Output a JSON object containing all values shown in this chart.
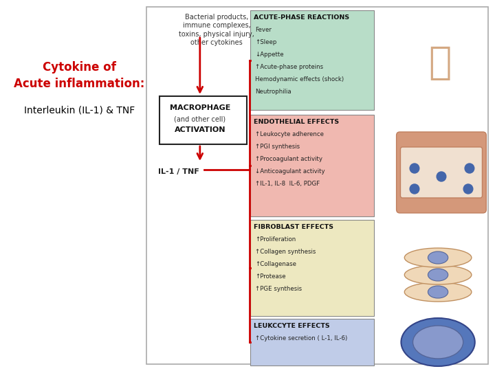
{
  "title_line1": "Cytokine of",
  "title_line2": "Acute inflammation:",
  "title_line3": "Interleukin (IL-1) & TNF",
  "title_color1": "#cc0000",
  "title_color2": "#000000",
  "input_lines": [
    "Bacterial products,",
    "immune complexes,",
    "toxins, physical injury,",
    "other cytokines"
  ],
  "boxes": [
    {
      "label": "ACUTE-PHASE REACTIONS",
      "color": "#b8ddc8",
      "items": [
        "Fever",
        "↑Sleep",
        "↓Appette",
        "↑Acute-phase proteins",
        "Hemodynamic effects (shock)",
        "Neutrophilia"
      ]
    },
    {
      "label": "ENDOTHELIAL EFFECTS",
      "color": "#f0b8b0",
      "items": [
        "↑Leukocyte adherence",
        "↑PGI synthesis",
        "↑Procoagulant activity",
        "↓Anticoagulant activity",
        "↑IL-1, IL-8  IL-6, PDGF"
      ]
    },
    {
      "label": "FIBROBLAST EFFECTS",
      "color": "#ede8c0",
      "items": [
        "↑Proliferation",
        "↑Collagen synthesis",
        "↑Collagenase",
        "↑Protease",
        "↑PGE synthesis"
      ]
    },
    {
      "label": "LEUKCCYTE EFFECTS",
      "color": "#c0cce8",
      "items": [
        "↑Cytokine secretion ( L-1, IL-6)"
      ]
    }
  ],
  "arrow_color": "#cc0000",
  "line_color": "#cc0000",
  "border_color": "#aaaaaa"
}
